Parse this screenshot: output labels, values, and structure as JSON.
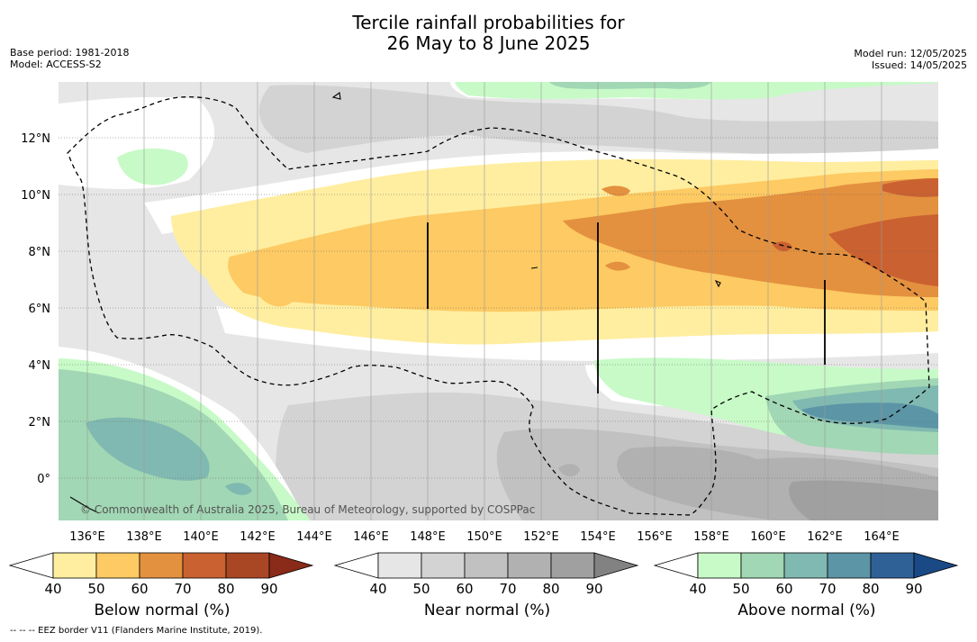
{
  "header": {
    "title_line1": "Tercile rainfall probabilities for",
    "title_line2": "26 May to 8 June 2025",
    "base_period": "Base period: 1981-2018",
    "model": "Model: ACCESS-S2",
    "model_run": "Model run: 12/05/2025",
    "issued": "Issued: 14/05/2025"
  },
  "map": {
    "lat_labels": [
      "12°N",
      "10°N",
      "8°N",
      "6°N",
      "4°N",
      "2°N",
      "0°"
    ],
    "lon_labels": [
      "136°E",
      "138°E",
      "140°E",
      "142°E",
      "144°E",
      "146°E",
      "148°E",
      "150°E",
      "152°E",
      "154°E",
      "156°E",
      "158°E",
      "160°E",
      "162°E",
      "164°E"
    ],
    "copyright": "© Commonwealth of Australia 2025, Bureau of Meteorology, supported by COSPPac"
  },
  "colorbars": {
    "tick_labels": [
      "40",
      "50",
      "60",
      "70",
      "80",
      "90"
    ],
    "below": {
      "label": "Below normal (%)",
      "colors": [
        "#ffeea0",
        "#fdca63",
        "#e3913f",
        "#ca6130",
        "#a94725",
        "#8a2a18"
      ]
    },
    "near": {
      "label": "Near normal (%)",
      "colors": [
        "#e6e6e6",
        "#d3d3d3",
        "#c1c1c1",
        "#b1b1b1",
        "#a0a0a0",
        "#828282"
      ]
    },
    "above": {
      "label": "Above normal (%)",
      "colors": [
        "#c7fac7",
        "#a1d7b4",
        "#80b9b1",
        "#5c95a6",
        "#2f6197",
        "#1a4a86"
      ]
    }
  },
  "footnote": "-- -- -- EEZ border V11 (Flanders Marine Institute, 2019)."
}
